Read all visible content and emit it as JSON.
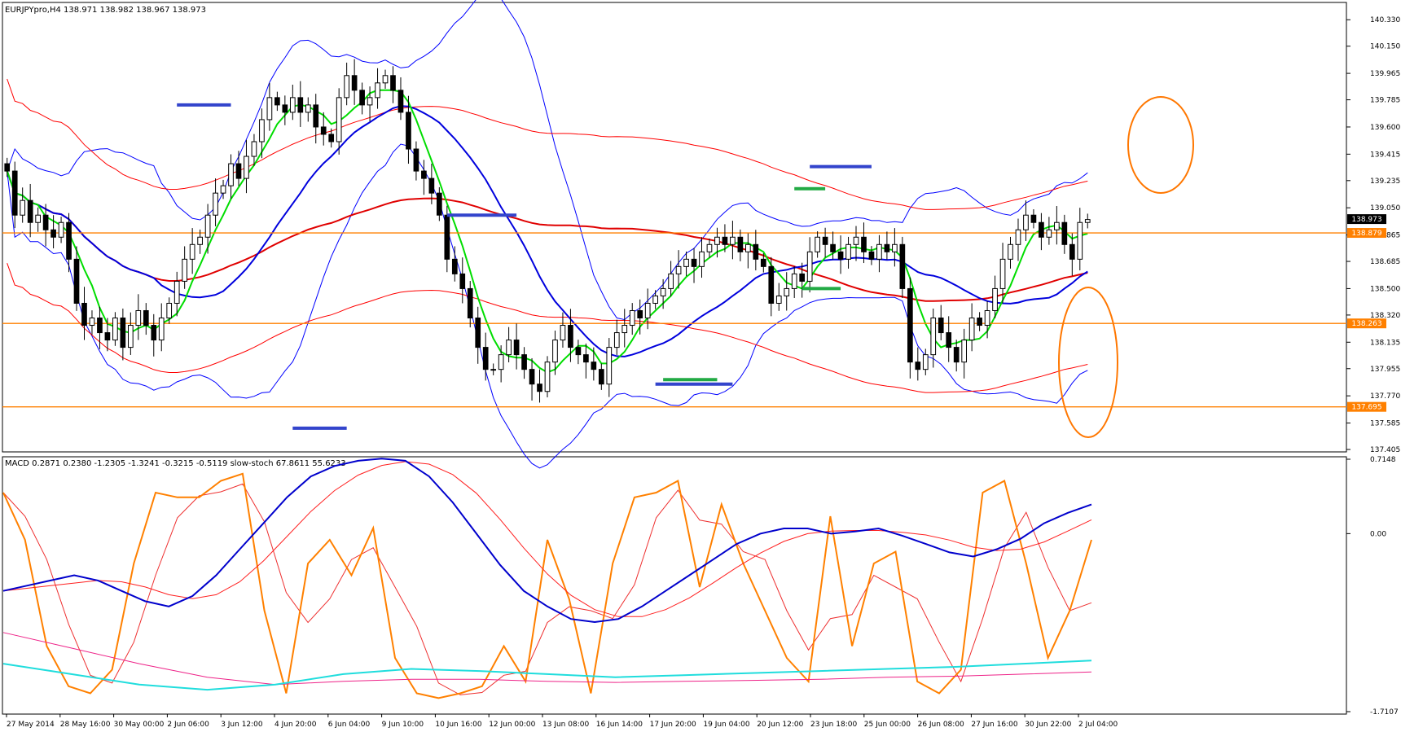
{
  "header": {
    "main_title": "EURJPYpro,H4  138.971 138.982 138.967 138.973",
    "sub_title": "MACD 0.2871 0.2380 -1.2305 -1.3241 -0.3215 -0.5119  slow-stoch 67.8611 55.6233"
  },
  "colors": {
    "candle": "#000000",
    "bb": "#0000ff",
    "env": "#ff0000",
    "ma_red": "#e00000",
    "ma_green": "#00dd00",
    "ma_blue": "#0000dd",
    "hline": "#ff8000",
    "blue_marker": "#3344cc",
    "green_marker": "#22aa44",
    "circle": "#ff7700",
    "macd": "#0000cc",
    "signal": "#ff2020",
    "stoch_k": "#ff8000",
    "stoch_d": "#ee3030",
    "cyan": "#20dddd",
    "magenta": "#ee2288"
  },
  "chart_data": [
    {
      "type": "candlestick",
      "symbol": "EURJPYpro",
      "timeframe": "H4",
      "ohlc_last": {
        "open": 138.971,
        "high": 138.982,
        "low": 138.967,
        "close": 138.973
      },
      "ylim": [
        137.405,
        140.42
      ],
      "y_ticks": [
        "140.330",
        "140.150",
        "139.965",
        "139.785",
        "139.600",
        "139.415",
        "139.235",
        "139.050",
        "138.865",
        "138.685",
        "138.500",
        "138.320",
        "138.135",
        "137.955",
        "137.770",
        "137.585",
        "137.405"
      ],
      "x_ticks": [
        "27 May 2014",
        "28 May 16:00",
        "30 May 00:00",
        "2 Jun 06:00",
        "3 Jun 12:00",
        "4 Jun 20:00",
        "6 Jun 04:00",
        "9 Jun 10:00",
        "10 Jun 16:00",
        "12 Jun 00:00",
        "13 Jun 08:00",
        "16 Jun 14:00",
        "17 Jun 20:00",
        "19 Jun 04:00",
        "20 Jun 12:00",
        "23 Jun 18:00",
        "25 Jun 00:00",
        "26 Jun 08:00",
        "27 Jun 16:00",
        "30 Jun 22:00",
        "2 Jul 04:00"
      ],
      "price_labels": [
        {
          "value": 138.973,
          "text": "138.973",
          "style": "current"
        },
        {
          "value": 138.879,
          "text": "138.879",
          "style": "orange"
        },
        {
          "value": 138.263,
          "text": "138.263",
          "style": "orange"
        },
        {
          "value": 137.695,
          "text": "137.695",
          "style": "orange"
        }
      ],
      "horizontal_lines": [
        138.879,
        138.263,
        137.695
      ],
      "close": [
        139.3,
        139.0,
        139.1,
        138.95,
        139.0,
        138.9,
        138.85,
        138.95,
        138.7,
        138.4,
        138.25,
        138.3,
        138.2,
        138.15,
        138.3,
        138.1,
        138.25,
        138.35,
        138.25,
        138.15,
        138.3,
        138.4,
        138.55,
        138.7,
        138.8,
        138.85,
        139.0,
        139.15,
        139.2,
        139.35,
        139.25,
        139.4,
        139.5,
        139.65,
        139.8,
        139.75,
        139.7,
        139.8,
        139.7,
        139.75,
        139.6,
        139.55,
        139.5,
        139.8,
        139.95,
        139.85,
        139.75,
        139.8,
        139.9,
        139.95,
        139.85,
        139.7,
        139.45,
        139.3,
        139.25,
        139.15,
        139.0,
        138.7,
        138.6,
        138.5,
        138.3,
        138.1,
        137.95,
        137.95,
        138.05,
        138.15,
        138.05,
        137.95,
        137.85,
        137.8,
        138.0,
        138.15,
        138.25,
        138.1,
        138.05,
        138.0,
        137.95,
        137.85,
        138.1,
        138.2,
        138.25,
        138.35,
        138.3,
        138.4,
        138.45,
        138.5,
        138.6,
        138.65,
        138.7,
        138.65,
        138.75,
        138.8,
        138.85,
        138.8,
        138.85,
        138.75,
        138.8,
        138.7,
        138.65,
        138.4,
        138.45,
        138.5,
        138.6,
        138.55,
        138.75,
        138.85,
        138.8,
        138.75,
        138.7,
        138.8,
        138.85,
        138.75,
        138.7,
        138.8,
        138.75,
        138.8,
        138.5,
        138.0,
        137.95,
        138.05,
        138.3,
        138.2,
        138.1,
        138.0,
        138.15,
        138.3,
        138.25,
        138.35,
        138.5,
        138.7,
        138.8,
        138.9,
        139.0,
        138.95,
        138.85,
        138.9,
        138.95,
        138.8,
        138.7,
        138.95,
        138.97
      ]
    },
    {
      "type": "line",
      "indicator": "MACD + slow-stoch",
      "values": {
        "macd_main": 0.2871,
        "macd_signal": 0.238,
        "val3": -1.2305,
        "val4": -1.3241,
        "val5": -0.3215,
        "val6": -0.5119,
        "stoch_k": 67.8611,
        "stoch_d": 55.6233
      },
      "ylim": [
        -1.7107,
        0.7148
      ],
      "y_ticks": [
        "0.7148",
        "0.00",
        "-1.7107"
      ],
      "macd_series": [
        -0.55,
        -0.5,
        -0.45,
        -0.4,
        -0.45,
        -0.55,
        -0.65,
        -0.7,
        -0.6,
        -0.4,
        -0.15,
        0.1,
        0.35,
        0.55,
        0.65,
        0.7,
        0.72,
        0.7,
        0.55,
        0.3,
        0.0,
        -0.3,
        -0.55,
        -0.7,
        -0.82,
        -0.85,
        -0.82,
        -0.7,
        -0.55,
        -0.4,
        -0.25,
        -0.1,
        0.0,
        0.05,
        0.05,
        0.0,
        0.02,
        0.05,
        -0.02,
        -0.1,
        -0.18,
        -0.22,
        -0.15,
        -0.05,
        0.1,
        0.2,
        0.28
      ],
      "stoch_series": [
        90,
        70,
        25,
        8,
        5,
        15,
        60,
        90,
        88,
        88,
        95,
        98,
        40,
        5,
        60,
        70,
        55,
        75,
        20,
        5,
        3,
        5,
        8,
        25,
        10,
        70,
        45,
        5,
        60,
        88,
        90,
        95,
        50,
        85,
        60,
        40,
        20,
        10,
        80,
        25,
        60,
        65,
        10,
        5,
        15,
        90,
        95,
        60,
        20,
        40,
        70
      ]
    }
  ]
}
